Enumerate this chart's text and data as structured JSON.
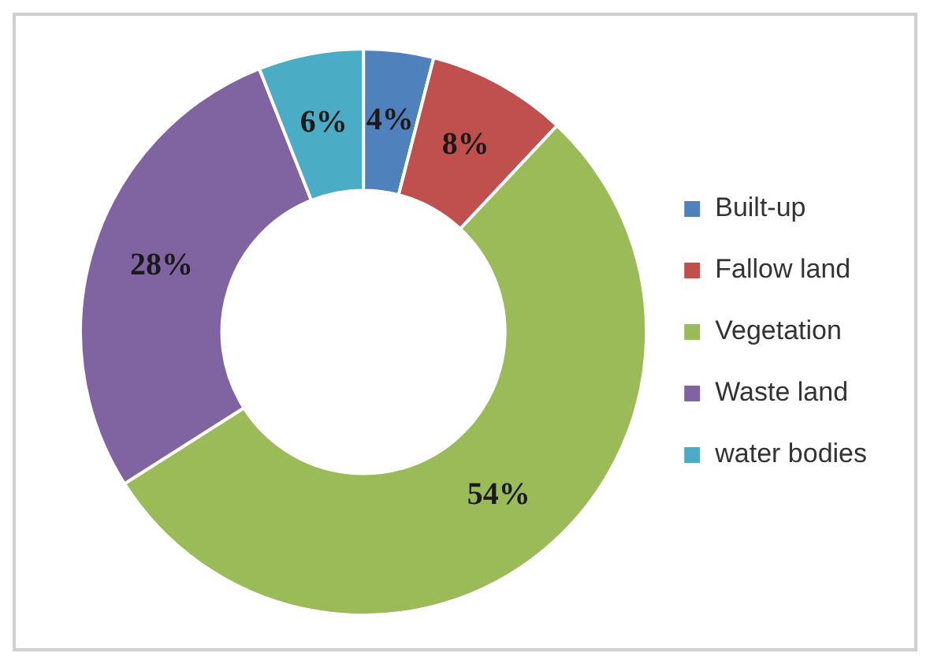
{
  "chart_data": {
    "type": "donut",
    "categories": [
      "Built-up",
      "Fallow land",
      "Vegetation",
      "Waste land",
      "water bodies"
    ],
    "values": [
      4,
      8,
      54,
      28,
      6
    ],
    "colors": [
      "#4f81bd",
      "#c0504d",
      "#9bbb59",
      "#8064a2",
      "#4bacc6"
    ],
    "value_labels": [
      "4%",
      "8%",
      "54%",
      "28%",
      "6%"
    ],
    "legend": "right"
  }
}
